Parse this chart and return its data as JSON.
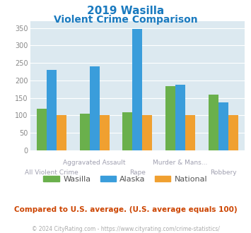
{
  "title_line1": "2019 Wasilla",
  "title_line2": "Violent Crime Comparison",
  "title_color": "#1a7abf",
  "categories": [
    "All Violent Crime",
    "Aggravated Assault",
    "Rape",
    "Murder & Mans...",
    "Robbery"
  ],
  "top_labels": [
    "",
    "Aggravated Assault",
    "",
    "Murder & Mans...",
    ""
  ],
  "bot_labels": [
    "All Violent Crime",
    "",
    "Rape",
    "",
    "Robbery"
  ],
  "wasilla": [
    118,
    104,
    108,
    183,
    159
  ],
  "alaska": [
    230,
    241,
    348,
    188,
    138
  ],
  "national": [
    100,
    100,
    100,
    100,
    100
  ],
  "wasilla_color": "#6ab04c",
  "alaska_color": "#3a9ddb",
  "national_color": "#f0a030",
  "plot_bg": "#dce9f0",
  "ylim": [
    0,
    370
  ],
  "yticks": [
    0,
    50,
    100,
    150,
    200,
    250,
    300,
    350
  ],
  "grid_color": "#ffffff",
  "label_color": "#a0a0b0",
  "subtitle": "Compared to U.S. average. (U.S. average equals 100)",
  "subtitle_color": "#cc4400",
  "footer": "© 2024 CityRating.com - https://www.cityrating.com/crime-statistics/",
  "footer_color": "#aaaaaa",
  "legend_labels": [
    "Wasilla",
    "Alaska",
    "National"
  ]
}
